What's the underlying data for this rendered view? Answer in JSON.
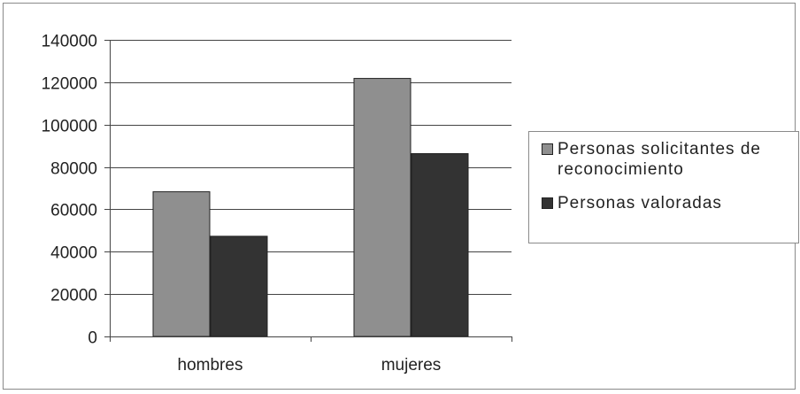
{
  "chart_data": {
    "type": "bar",
    "categories": [
      "hombres",
      "mujeres"
    ],
    "series": [
      {
        "name": "Personas solicitantes de reconocimiento",
        "values": [
          68500,
          122000
        ],
        "color": "#8f8f8f"
      },
      {
        "name": "Personas valoradas",
        "values": [
          47500,
          86500
        ],
        "color": "#333333"
      }
    ],
    "title": "",
    "xlabel": "",
    "ylabel": "",
    "ylim": [
      0,
      140000
    ],
    "yticks": [
      "0",
      "20000",
      "40000",
      "60000",
      "80000",
      "100000",
      "120000",
      "140000"
    ],
    "grid": true,
    "legend_position": "right"
  }
}
